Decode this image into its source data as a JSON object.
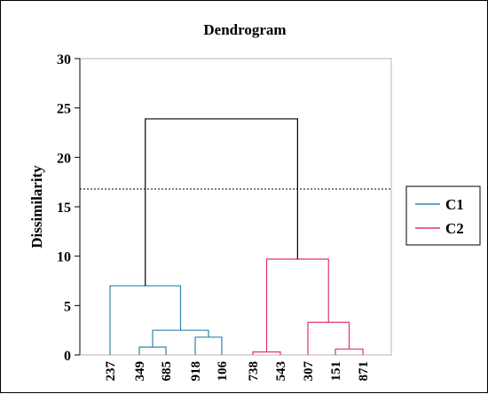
{
  "chart_data": {
    "type": "dendrogram",
    "title": "Dendrogram",
    "ylabel": "Dissimilarity",
    "xlabel": "",
    "ylim": [
      0,
      30
    ],
    "yticks": [
      0,
      5,
      10,
      15,
      20,
      25,
      30
    ],
    "leaves": [
      "237",
      "349",
      "685",
      "918",
      "106",
      "738",
      "543",
      "307",
      "151",
      "871"
    ],
    "cut_level": 16.8,
    "colors": {
      "C1": "#2e86ab",
      "C2": "#e0356b",
      "root": "#000000"
    },
    "legend": {
      "position": "right",
      "entries": [
        {
          "name": "C1",
          "color": "#2e86ab"
        },
        {
          "name": "C2",
          "color": "#e0356b"
        }
      ]
    },
    "merges": [
      {
        "left": 1,
        "right": 2,
        "height": 0.8,
        "cluster": "C1"
      },
      {
        "left": 3,
        "right": 4,
        "height": 1.8,
        "cluster": "C1"
      },
      {
        "left": "349+685",
        "right": "918+106",
        "height": 2.5,
        "cluster": "C1"
      },
      {
        "left": 0,
        "right": "349+685+918+106",
        "height": 7.0,
        "cluster": "C1"
      },
      {
        "left": 5,
        "right": 6,
        "height": 0.3,
        "cluster": "C2"
      },
      {
        "left": 8,
        "right": 9,
        "height": 0.6,
        "cluster": "C2"
      },
      {
        "left": 7,
        "right": "151+871",
        "height": 3.3,
        "cluster": "C2"
      },
      {
        "left": "738+543",
        "right": "307+151+871",
        "height": 9.7,
        "cluster": "C2"
      },
      {
        "left": "C1",
        "right": "C2",
        "height": 23.9,
        "cluster": "root"
      }
    ]
  }
}
